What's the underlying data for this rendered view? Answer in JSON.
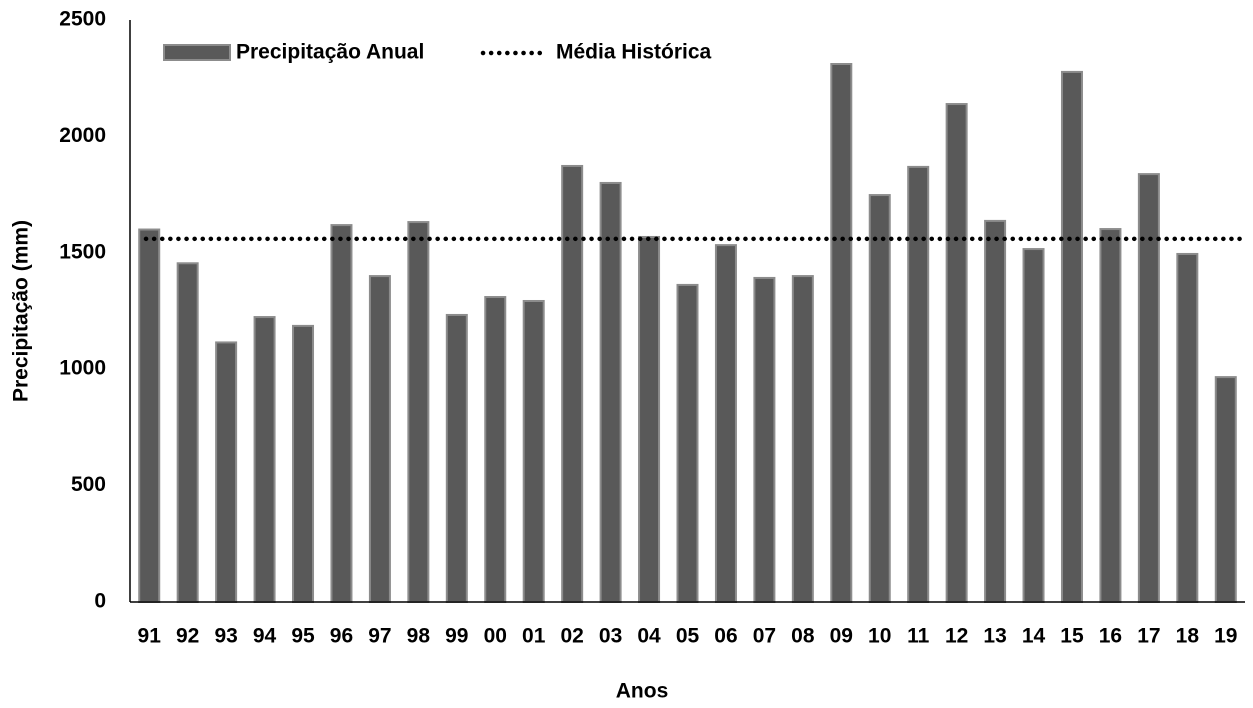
{
  "chart_data": {
    "type": "bar",
    "x_label": "Anos",
    "y_label": "Precipitação (mm)",
    "categories": [
      "91",
      "92",
      "93",
      "94",
      "95",
      "96",
      "97",
      "98",
      "99",
      "00",
      "01",
      "02",
      "03",
      "04",
      "05",
      "06",
      "07",
      "08",
      "09",
      "10",
      "11",
      "12",
      "13",
      "14",
      "15",
      "16",
      "17",
      "18",
      "19"
    ],
    "series": [
      {
        "name": "Precipitação Anual",
        "color": "#595959",
        "values": [
          1600,
          1455,
          1115,
          1224,
          1186,
          1619,
          1400,
          1632,
          1233,
          1310,
          1293,
          1873,
          1800,
          1568,
          1362,
          1533,
          1392,
          1400,
          2311,
          1748,
          1869,
          2139,
          1637,
          1516,
          2277,
          1602,
          1838,
          1495,
          966
        ]
      }
    ],
    "reference_line": {
      "name": "Média Histórica",
      "value": 1560,
      "color": "#000000",
      "style": "dotted"
    },
    "ylim": [
      0,
      2500
    ],
    "yticks": [
      0,
      500,
      1000,
      1500,
      2000,
      2500
    ],
    "grid": false,
    "legend": "top-left"
  }
}
